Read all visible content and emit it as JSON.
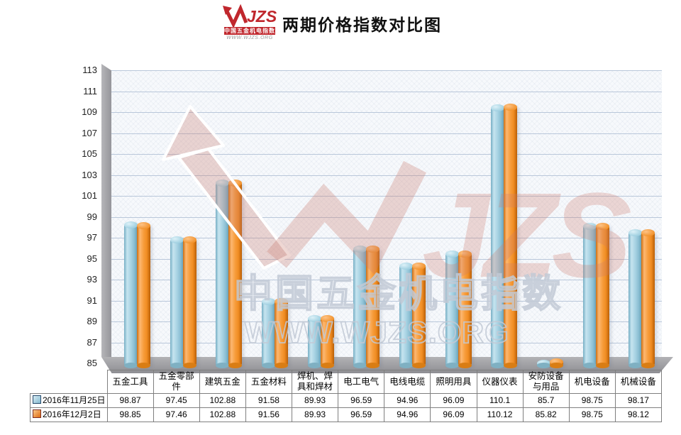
{
  "header": {
    "title": "两期价格指数对比图",
    "logo": {
      "letters": "JZS",
      "subtitle": "中国五金机电指数",
      "url": "WWW.WJZS.ORG",
      "brand_color": "#c0272d"
    }
  },
  "watermark": {
    "letters": "JZS",
    "line1": "中国五金机电指数",
    "line2": "WWW.WJZS.ORG",
    "color": "#cb796d"
  },
  "chart_data": {
    "type": "bar",
    "title": "两期价格指数对比图",
    "categories": [
      "五金工具",
      "五金零部件",
      "建筑五金",
      "五金材料",
      "焊机、焊具和焊材",
      "电工电气",
      "电线电缆",
      "照明用具",
      "仪器仪表",
      "安防设备与用品",
      "机电设备",
      "机械设备"
    ],
    "series": [
      {
        "name": "2016年11月25日",
        "color": "#9cc3d5",
        "values": [
          98.87,
          97.45,
          102.88,
          91.58,
          89.93,
          96.59,
          94.96,
          96.09,
          110.1,
          85.7,
          98.75,
          98.17
        ]
      },
      {
        "name": "2016年12月2日",
        "color": "#f08c28",
        "values": [
          98.85,
          97.46,
          102.88,
          91.56,
          89.93,
          96.59,
          94.96,
          96.09,
          110.12,
          85.82,
          98.75,
          98.12
        ]
      }
    ],
    "ylim": [
      85,
      113
    ],
    "ytick_step": 2,
    "grid": true,
    "legend_position": "table-left",
    "style": "3d-cylinder"
  }
}
